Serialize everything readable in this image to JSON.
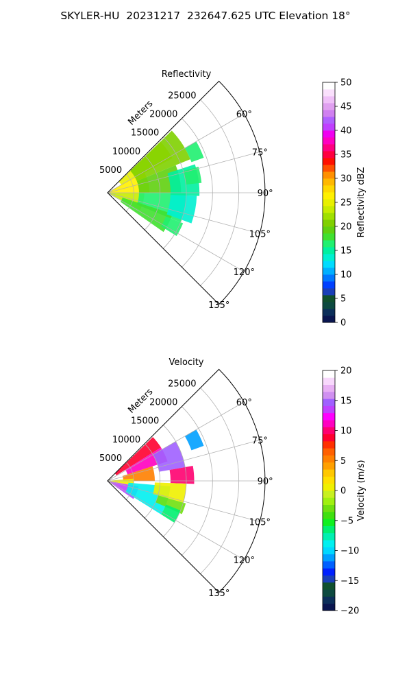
{
  "figure_title": "SKYLER-HU  20231217  232647.625 UTC Elevation 18°",
  "chart_data": [
    {
      "type": "heatmap",
      "projection": "polar-sector",
      "title": "Reflectivity",
      "radial_label": "Meters",
      "radial_ticks": [
        5000,
        10000,
        15000,
        20000,
        25000
      ],
      "radial_tick_labels": [
        "5000",
        "10000",
        "15000",
        "20000",
        "25000"
      ],
      "radial_range": [
        0,
        30000
      ],
      "azimuth_range_deg": [
        45,
        135
      ],
      "azimuth_ticks": [
        60,
        75,
        90,
        105,
        120,
        135
      ],
      "azimuth_tick_labels": [
        "60°",
        "75°",
        "90°",
        "105°",
        "120°",
        "135°"
      ],
      "grid": true,
      "colorbar": {
        "label": "Reflectivity dBZ",
        "min": 0,
        "max": 50,
        "ticks": [
          0,
          5,
          10,
          15,
          20,
          25,
          30,
          35,
          40,
          45,
          50
        ],
        "tick_labels": [
          "0",
          "5",
          "10",
          "15",
          "20",
          "25",
          "30",
          "35",
          "40",
          "45",
          "50"
        ],
        "colors": [
          "#0a1650",
          "#0c2f5a",
          "#0d4a40",
          "#10502e",
          "#1a3fb8",
          "#0040ff",
          "#0078ff",
          "#00b0ff",
          "#00dcff",
          "#00f0d0",
          "#00f0a0",
          "#20f070",
          "#40e030",
          "#60d010",
          "#80d000",
          "#a0e000",
          "#c8ec00",
          "#e8f000",
          "#fff000",
          "#ffd800",
          "#ffb800",
          "#ff9000",
          "#ff5000",
          "#ff1000",
          "#ff0040",
          "#ff0080",
          "#ff00c0",
          "#f000f0",
          "#c040ff",
          "#b060ff",
          "#d080f0",
          "#e0a0f0",
          "#f0c0f8",
          "#fae0fc",
          "#ffffff"
        ]
      },
      "echoes": [
        {
          "az_from": 46,
          "az_to": 62,
          "r_from": 3000,
          "r_to": 14000,
          "value": 25
        },
        {
          "az_from": 60,
          "az_to": 90,
          "r_from": 0,
          "r_to": 8000,
          "value": 26
        },
        {
          "az_from": 90,
          "az_to": 118,
          "r_from": 0,
          "r_to": 7000,
          "value": 24
        },
        {
          "az_from": 46,
          "az_to": 68,
          "r_from": 6000,
          "r_to": 17000,
          "value": 20
        },
        {
          "az_from": 68,
          "az_to": 90,
          "r_from": 6000,
          "r_to": 14000,
          "value": 19
        },
        {
          "az_from": 90,
          "az_to": 112,
          "r_from": 6000,
          "r_to": 15000,
          "value": 17
        },
        {
          "az_from": 108,
          "az_to": 125,
          "r_from": 3000,
          "r_to": 13000,
          "value": 18
        },
        {
          "az_from": 72,
          "az_to": 92,
          "r_from": 12000,
          "r_to": 17500,
          "value": 15
        },
        {
          "az_from": 92,
          "az_to": 110,
          "r_from": 12000,
          "r_to": 17000,
          "value": 14
        },
        {
          "az_from": 112,
          "az_to": 122,
          "r_from": 12000,
          "r_to": 15500,
          "value": 16
        },
        {
          "az_from": 60,
          "az_to": 70,
          "r_from": 17000,
          "r_to": 19500,
          "value": 16
        },
        {
          "az_from": 74,
          "az_to": 84,
          "r_from": 15000,
          "r_to": 18000,
          "value": 17
        }
      ]
    },
    {
      "type": "heatmap",
      "projection": "polar-sector",
      "title": "Velocity",
      "radial_label": "Meters",
      "radial_ticks": [
        5000,
        10000,
        15000,
        20000,
        25000
      ],
      "radial_tick_labels": [
        "5000",
        "10000",
        "15000",
        "20000",
        "25000"
      ],
      "radial_range": [
        0,
        30000
      ],
      "azimuth_range_deg": [
        45,
        135
      ],
      "azimuth_ticks": [
        60,
        75,
        90,
        105,
        120,
        135
      ],
      "azimuth_tick_labels": [
        "60°",
        "75°",
        "90°",
        "105°",
        "120°",
        "135°"
      ],
      "grid": true,
      "colorbar": {
        "label": "Velocity (m/s)",
        "min": -20,
        "max": 20,
        "ticks": [
          -20,
          -15,
          -10,
          -5,
          0,
          5,
          10,
          15,
          20
        ],
        "tick_labels": [
          "−20",
          "−15",
          "−10",
          "−5",
          "0",
          "5",
          "10",
          "15",
          "20"
        ],
        "colors": [
          "#0a1650",
          "#0c2f5a",
          "#0d4a40",
          "#10502e",
          "#1a3fb8",
          "#0020ff",
          "#0060ff",
          "#00a0ff",
          "#00d8ff",
          "#00f0f0",
          "#00f0b0",
          "#00f070",
          "#10f020",
          "#40e010",
          "#70e010",
          "#a0f010",
          "#c8f020",
          "#f0f000",
          "#ffe000",
          "#ffc800",
          "#ffa000",
          "#ff8000",
          "#ff6000",
          "#ff3000",
          "#ff0030",
          "#ff0070",
          "#ff00c0",
          "#ff00ff",
          "#c040ff",
          "#a060ff",
          "#d090f0",
          "#e8b0f4",
          "#f8d8fc",
          "#ffffff"
        ]
      },
      "echoes": [
        {
          "az_from": 46,
          "az_to": 58,
          "r_from": 2000,
          "r_to": 12000,
          "value": 9
        },
        {
          "az_from": 58,
          "az_to": 72,
          "r_from": 4000,
          "r_to": 12000,
          "value": 11
        },
        {
          "az_from": 72,
          "az_to": 90,
          "r_from": 3000,
          "r_to": 9000,
          "value": 5
        },
        {
          "az_from": 85,
          "az_to": 100,
          "r_from": 0,
          "r_to": 5000,
          "value": 1
        },
        {
          "az_from": 100,
          "az_to": 125,
          "r_from": 0,
          "r_to": 6000,
          "value": 13
        },
        {
          "az_from": 95,
          "az_to": 122,
          "r_from": 4000,
          "r_to": 12000,
          "value": -9
        },
        {
          "az_from": 60,
          "az_to": 80,
          "r_from": 10000,
          "r_to": 15000,
          "value": 15
        },
        {
          "az_from": 80,
          "az_to": 92,
          "r_from": 12000,
          "r_to": 16500,
          "value": 10
        },
        {
          "az_from": 92,
          "az_to": 106,
          "r_from": 9000,
          "r_to": 15000,
          "value": 1
        },
        {
          "az_from": 106,
          "az_to": 114,
          "r_from": 10000,
          "r_to": 15500,
          "value": -3
        },
        {
          "az_from": 60,
          "az_to": 70,
          "r_from": 17000,
          "r_to": 19500,
          "value": -11
        },
        {
          "az_from": 112,
          "az_to": 122,
          "r_from": 12000,
          "r_to": 15000,
          "value": -6
        }
      ]
    }
  ]
}
